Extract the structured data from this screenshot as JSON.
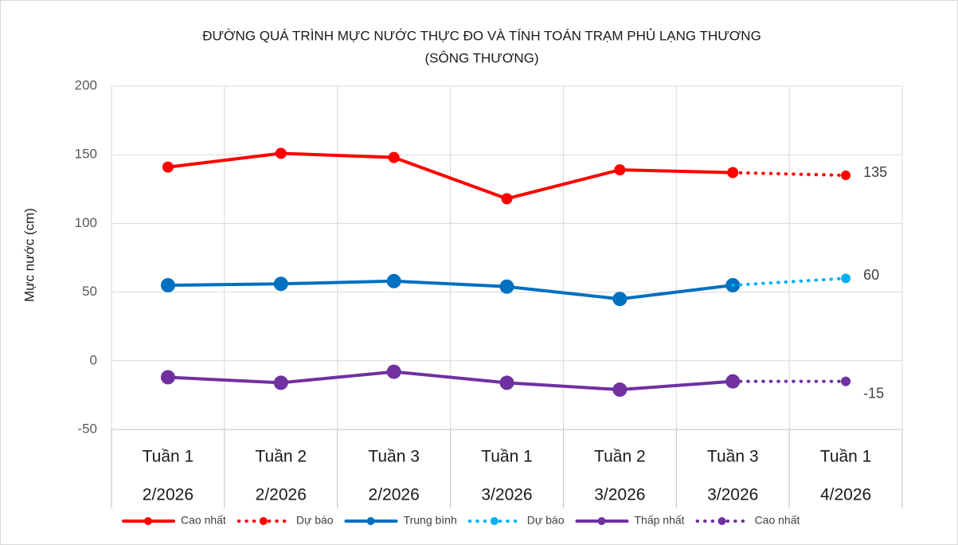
{
  "chart_data": {
    "type": "line",
    "title": [
      "ĐƯỜNG QUÁ TRÌNH MỰC NƯỚC THỰC ĐO VÀ TÍNH TOÁN TRẠM PHỦ LẠNG THƯƠNG",
      "(SÔNG THƯƠNG)"
    ],
    "y_label": "Mực nước (cm)",
    "categories": [
      [
        "Tuần 1",
        "2/2026"
      ],
      [
        "Tuần 2",
        "2/2026"
      ],
      [
        "Tuần 3",
        "2/2026"
      ],
      [
        "Tuần 1",
        "3/2026"
      ],
      [
        "Tuần 2",
        "3/2026"
      ],
      [
        "Tuần 3",
        "3/2026"
      ],
      [
        "Tuần 1",
        "4/2026"
      ]
    ],
    "series": [
      {
        "name": "Cao nhất",
        "color": "#ff0000",
        "dotted": false,
        "values": [
          141,
          151,
          148,
          118,
          139,
          137,
          null
        ]
      },
      {
        "name": "Dự báo",
        "color": "#ff0000",
        "dotted": true,
        "values": [
          null,
          null,
          null,
          null,
          null,
          137,
          135
        ]
      },
      {
        "name": "Trung bình",
        "color": "#0070c0",
        "dotted": false,
        "values": [
          55,
          56,
          58,
          54,
          45,
          55,
          null
        ]
      },
      {
        "name": "Dự báo",
        "color": "#00b0f0",
        "dotted": true,
        "values": [
          null,
          null,
          null,
          null,
          null,
          55,
          60
        ]
      },
      {
        "name": "Thấp nhất",
        "color": "#7030a0",
        "dotted": false,
        "values": [
          -12,
          -16,
          -8,
          -16,
          -21,
          -15,
          null
        ]
      },
      {
        "name": "Cao nhất",
        "color": "#7030a0",
        "dotted": true,
        "values": [
          null,
          null,
          null,
          null,
          null,
          -15,
          -15
        ]
      }
    ],
    "ylim": [
      -50,
      200
    ],
    "yticks": [
      -50,
      0,
      50,
      100,
      150,
      200
    ],
    "grid": true
  }
}
